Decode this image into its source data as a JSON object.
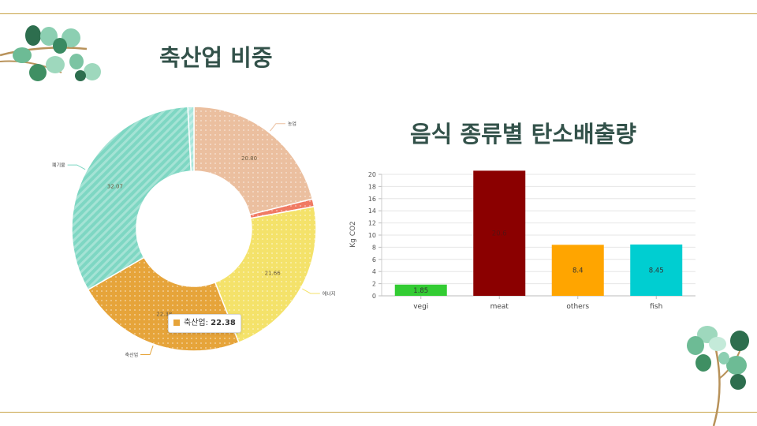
{
  "slide": {
    "title_left": "축산업 비중",
    "title_right": "음식 종류별 탄소배출량"
  },
  "tooltip": {
    "label": "축산업",
    "value": "22.38",
    "color": "#e6a43a"
  },
  "chart_data": [
    {
      "type": "pie",
      "donut": true,
      "slices": [
        {
          "label": "농업",
          "value": 20.8,
          "value_label": "20.80",
          "color": "#ebbf9f"
        },
        {
          "label": "",
          "value": 1.0,
          "value_label": "",
          "color": "#f07a63"
        },
        {
          "label": "에너지",
          "value": 21.66,
          "value_label": "21.66",
          "color": "#f4e26a"
        },
        {
          "label": "축산업",
          "value": 22.38,
          "value_label": "22.38",
          "color": "#e6a43a"
        },
        {
          "label": "폐기물",
          "value": 32.07,
          "value_label": "32.07",
          "color": "#7ed7c3"
        },
        {
          "label": "",
          "value": 0.8,
          "value_label": "",
          "color": "#a8e6dc"
        }
      ]
    },
    {
      "type": "bar",
      "categories": [
        "vegi",
        "meat",
        "others",
        "fish"
      ],
      "values": [
        1.85,
        20.6,
        8.4,
        8.45
      ],
      "value_labels": [
        "1.85",
        "20.6",
        "8.4",
        "8.45"
      ],
      "colors": [
        "#33cc33",
        "#8b0000",
        "#ffa500",
        "#00ced1"
      ],
      "ylabel": "Kg CO2",
      "ylim": [
        0,
        20
      ],
      "yticks": [
        "0",
        "2",
        "4",
        "6",
        "8",
        "10",
        "12",
        "14",
        "16",
        "18",
        "20"
      ],
      "grid": true
    }
  ]
}
